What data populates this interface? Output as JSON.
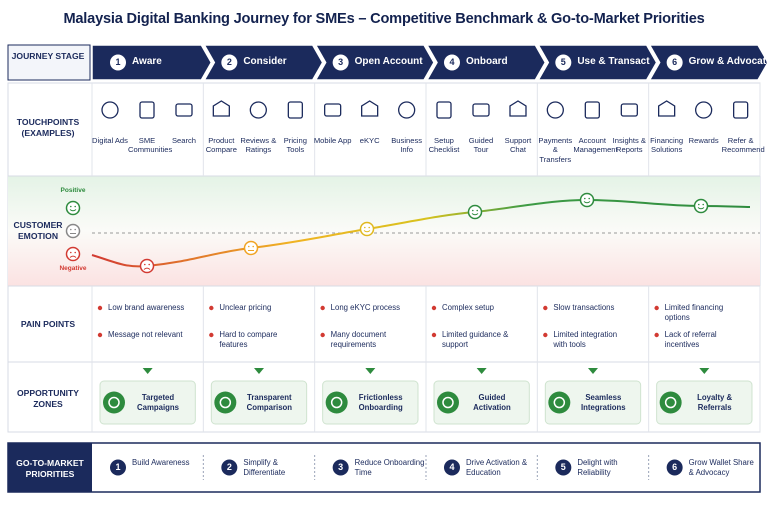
{
  "title": "Malaysia Digital Banking Journey for SMEs – Competitive Benchmark & Go-to-Market Priorities",
  "journey_stage_label": "JOURNEY STAGE",
  "stages": [
    {
      "number": "1",
      "name": "Aware"
    },
    {
      "number": "2",
      "name": "Consider"
    },
    {
      "number": "3",
      "name": "Open Account"
    },
    {
      "number": "4",
      "name": "Onboard"
    },
    {
      "number": "5",
      "name": "Use & Transact"
    },
    {
      "number": "6",
      "name": "Grow & Advocate"
    }
  ],
  "row_labels": {
    "touchpoints": "TOUCHPOINTS (EXAMPLES)",
    "emotion": "CUSTOMER EMOTION",
    "pain_points": "PAIN POINTS",
    "opportunities": "OPPORTUNITY ZONES"
  },
  "emotion_legend": {
    "positive": "Positive",
    "negative": "Negative"
  },
  "touchpoints": [
    [
      "Digital Ads",
      "SME Communities",
      "Search"
    ],
    [
      "Product Compare",
      "Reviews & Ratings",
      "Pricing Tools"
    ],
    [
      "Mobile App",
      "eKYC",
      "Business Info"
    ],
    [
      "Setup Checklist",
      "Guided Tour",
      "Support Chat"
    ],
    [
      "Payments & Transfers",
      "Account Management",
      "Insights & Reports"
    ],
    [
      "Financing Solutions",
      "Rewards",
      "Refer & Recommend"
    ]
  ],
  "pain_points": [
    [
      "Low brand awareness",
      "Message not relevant"
    ],
    [
      "Unclear pricing",
      "Hard to compare features"
    ],
    [
      "Long eKYC process",
      "Many document requirements"
    ],
    [
      "Complex setup",
      "Limited guidance & support"
    ],
    [
      "Slow transactions",
      "Limited integration with tools"
    ],
    [
      "Limited financing options",
      "Lack of referral incentives"
    ]
  ],
  "opportunities": [
    "Targeted Campaigns",
    "Transparent Comparison",
    "Frictionless Onboarding",
    "Guided Activation",
    "Seamless Integrations",
    "Loyalty & Referrals"
  ],
  "gtm": {
    "label": "GO-TO-MARKET PRIORITIES",
    "items": [
      {
        "number": "1",
        "text": "Build Awareness"
      },
      {
        "number": "2",
        "text": "Simplify & Differentiate"
      },
      {
        "number": "3",
        "text": "Reduce Onboarding Time"
      },
      {
        "number": "4",
        "text": "Drive Activation & Education"
      },
      {
        "number": "5",
        "text": "Delight with Reliability"
      },
      {
        "number": "6",
        "text": "Grow Wallet Share & Advocacy"
      }
    ]
  }
}
